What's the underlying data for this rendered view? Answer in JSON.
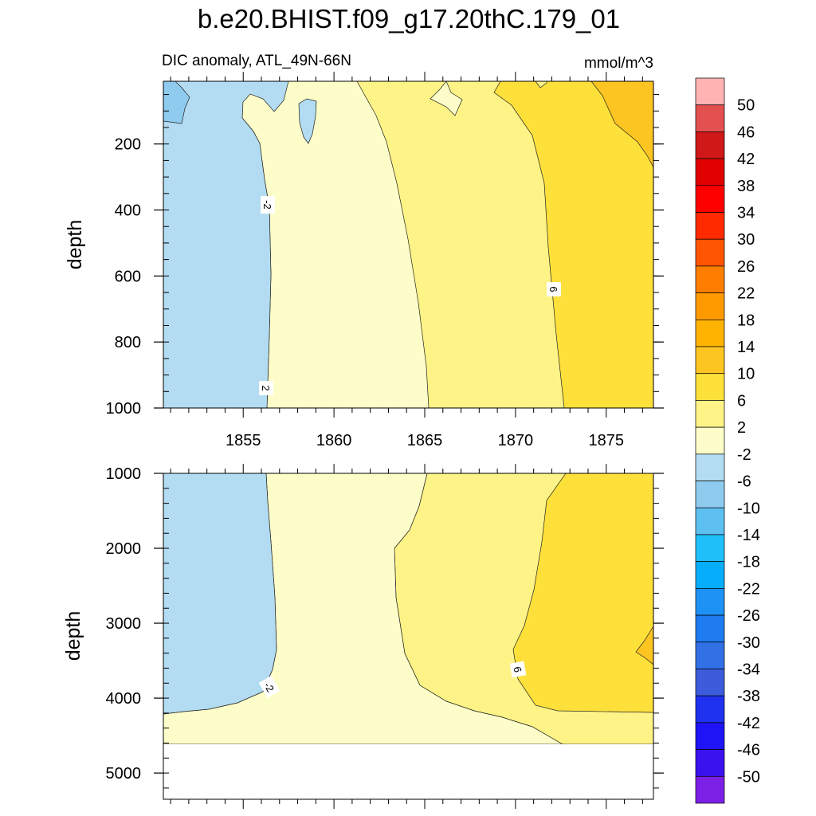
{
  "title": "b.e20.BHIST.f09_g17.20thC.179_01",
  "subtitle_left": "DIC anomaly, ATL_49N-66N",
  "subtitle_right": "mmol/m^3",
  "chart_data": [
    {
      "type": "heatmap",
      "panel": "upper",
      "ylabel": "depth",
      "x_ticks": [
        1855,
        1860,
        1865,
        1870,
        1875
      ],
      "xlim": [
        1850.6,
        1877.6
      ],
      "y_ticks": [
        200,
        400,
        600,
        800,
        1000
      ],
      "ylim": [
        10,
        1000
      ],
      "y_reversed": true,
      "contour_labels": [
        {
          "text": "-2",
          "x": 1855.8,
          "y": 385
        },
        {
          "text": "2",
          "x": 1855.8,
          "y": 942
        },
        {
          "text": "6",
          "x": 1871.9,
          "y": 640
        }
      ],
      "regions": [
        {
          "level": "-6 to -2",
          "approx_x_range": [
            1850.6,
            1856.2
          ]
        },
        {
          "level": "-10 to -6",
          "approx_x_range": [
            1850.6,
            1851.9
          ],
          "approx_y_range": [
            10,
            120
          ]
        },
        {
          "level": "-2 to 2",
          "approx_x_range": [
            1856.2,
            1865.1
          ]
        },
        {
          "level": "2 to 6",
          "approx_x_range": [
            1865.1,
            1872.6
          ]
        },
        {
          "level": "6 to 10",
          "approx_x_range": [
            1872.6,
            1877.6
          ]
        },
        {
          "level": "10 to 14",
          "approx_x_range": [
            1874.5,
            1877.6
          ],
          "approx_y_range": [
            10,
            250
          ]
        }
      ]
    },
    {
      "type": "heatmap",
      "panel": "lower",
      "ylabel": "depth",
      "x_ticks": [
        1855,
        1860,
        1865,
        1870,
        1875
      ],
      "xlim": [
        1850.6,
        1877.6
      ],
      "y_ticks": [
        1000,
        2000,
        3000,
        4000,
        5000
      ],
      "ylim": [
        1000,
        5350
      ],
      "y_reversed": true,
      "data_bottom_depth": 4630,
      "contour_labels": [
        {
          "text": "-2",
          "x": 1855.8,
          "y": 3870
        },
        {
          "text": "6",
          "x": 1870.0,
          "y": 3650
        }
      ],
      "regions": [
        {
          "level": "-6 to -2",
          "approx_x_range": [
            1850.6,
            1856.3
          ],
          "approx_y_range": [
            1000,
            4200
          ]
        },
        {
          "level": "-2 to 2",
          "approx_x_range": [
            1856.3,
            1865.1
          ]
        },
        {
          "level": "2 to 6",
          "approx_x_range": [
            1865.1,
            1872.6
          ]
        },
        {
          "level": "6 to 10",
          "approx_x_range": [
            1872.6,
            1877.6
          ],
          "approx_y_range": [
            1000,
            4200
          ]
        },
        {
          "level": "10 to 14",
          "approx_x_range": [
            1877.0,
            1877.6
          ],
          "approx_y_range": [
            3100,
            3600
          ]
        }
      ]
    }
  ],
  "colorbar": {
    "labels": [
      "50",
      "46",
      "42",
      "38",
      "34",
      "30",
      "26",
      "22",
      "18",
      "14",
      "10",
      "6",
      "2",
      "-2",
      "-6",
      "-10",
      "-14",
      "-18",
      "-22",
      "-26",
      "-30",
      "-34",
      "-38",
      "-42",
      "-46",
      "-50"
    ],
    "colors": [
      "#ffb3b3",
      "#e35050",
      "#d01818",
      "#e00000",
      "#ff0000",
      "#ff2a00",
      "#ff5500",
      "#ff7d00",
      "#ff9900",
      "#ffb300",
      "#fdc521",
      "#fde03a",
      "#fdf386",
      "#fdfdc9",
      "#b3dcf2",
      "#8ecbee",
      "#5ec0f0",
      "#1ec0fa",
      "#05adfa",
      "#1e91f5",
      "#1e7bf0",
      "#3270e6",
      "#3c5cdc",
      "#1e32f0",
      "#1e14f5",
      "#3a12f0",
      "#7d20e6"
    ]
  }
}
